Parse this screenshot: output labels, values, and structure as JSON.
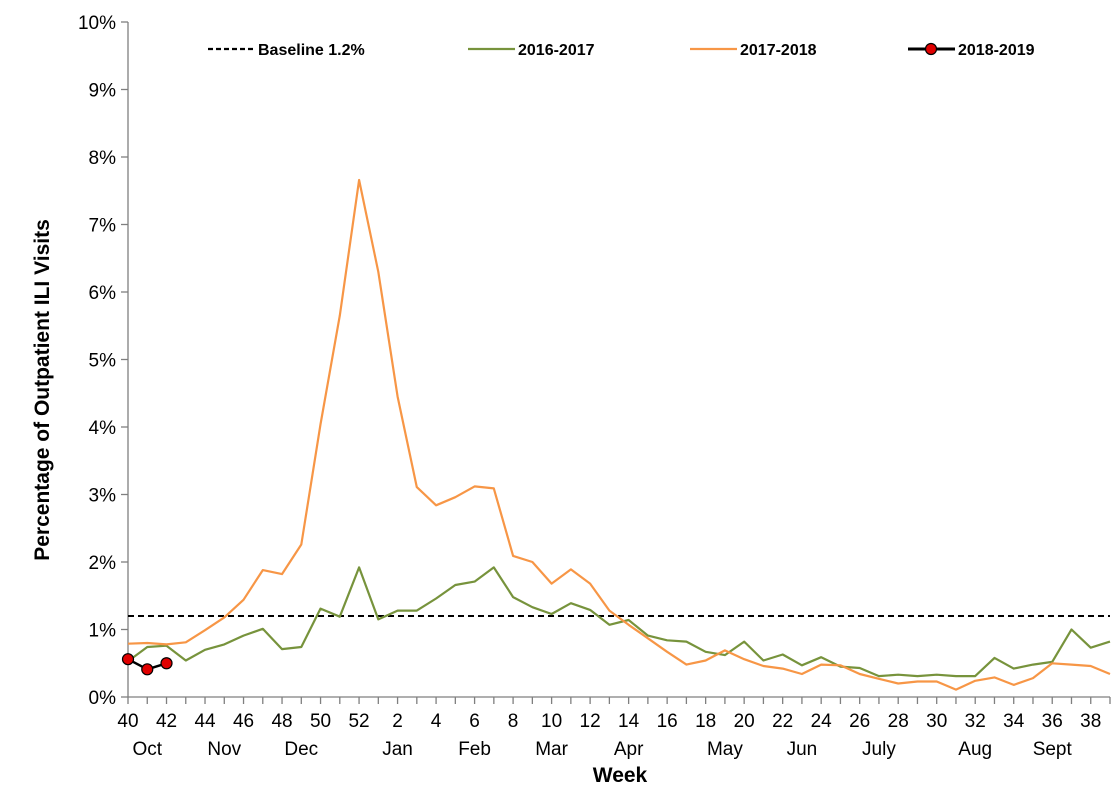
{
  "chart_data": {
    "type": "line",
    "title": "",
    "xlabel": "Week",
    "ylabel": "Percentage of Outpatient ILI Visits",
    "ylim": [
      0,
      10
    ],
    "y_ticks": [
      "0%",
      "1%",
      "2%",
      "3%",
      "4%",
      "5%",
      "6%",
      "7%",
      "8%",
      "9%",
      "10%"
    ],
    "x_weeks": [
      40,
      41,
      42,
      43,
      44,
      45,
      46,
      47,
      48,
      49,
      50,
      51,
      52,
      1,
      2,
      3,
      4,
      5,
      6,
      7,
      8,
      9,
      10,
      11,
      12,
      13,
      14,
      15,
      16,
      17,
      18,
      19,
      20,
      21,
      22,
      23,
      24,
      25,
      26,
      27,
      28,
      29,
      30,
      31,
      32,
      33,
      34,
      35,
      36,
      37,
      38,
      39
    ],
    "x_tick_labels": [
      "40",
      "42",
      "44",
      "46",
      "48",
      "50",
      "52",
      "2",
      "4",
      "6",
      "8",
      "10",
      "12",
      "14",
      "16",
      "18",
      "20",
      "22",
      "24",
      "26",
      "28",
      "30",
      "32",
      "34",
      "36",
      "38"
    ],
    "month_labels": [
      {
        "label": "Oct",
        "week_index": 1
      },
      {
        "label": "Nov",
        "week_index": 5
      },
      {
        "label": "Dec",
        "week_index": 9
      },
      {
        "label": "Jan",
        "week_index": 14
      },
      {
        "label": "Feb",
        "week_index": 18
      },
      {
        "label": "Mar",
        "week_index": 22
      },
      {
        "label": "Apr",
        "week_index": 26
      },
      {
        "label": "May",
        "week_index": 31
      },
      {
        "label": "Jun",
        "week_index": 35
      },
      {
        "label": "July",
        "week_index": 39
      },
      {
        "label": "Aug",
        "week_index": 44
      },
      {
        "label": "Sept",
        "week_index": 48
      }
    ],
    "baseline": {
      "name": "Baseline 1.2%",
      "value": 1.2,
      "color": "#000000",
      "style": "dashed"
    },
    "series": [
      {
        "name": "2016-2017",
        "color": "#77933C",
        "markers": false,
        "values": [
          0.53,
          0.74,
          0.76,
          0.54,
          0.7,
          0.78,
          0.91,
          1.01,
          0.71,
          0.74,
          1.31,
          1.19,
          1.92,
          1.15,
          1.28,
          1.28,
          1.46,
          1.66,
          1.71,
          1.92,
          1.48,
          1.33,
          1.23,
          1.39,
          1.29,
          1.07,
          1.14,
          0.91,
          0.84,
          0.82,
          0.67,
          0.62,
          0.82,
          0.54,
          0.63,
          0.47,
          0.59,
          0.45,
          0.43,
          0.31,
          0.33,
          0.31,
          0.33,
          0.31,
          0.31,
          0.58,
          0.42,
          0.48,
          0.52,
          1.0,
          0.73,
          0.82
        ]
      },
      {
        "name": "2017-2018",
        "color": "#F79646",
        "markers": false,
        "values": [
          0.79,
          0.8,
          0.78,
          0.81,
          0.99,
          1.18,
          1.44,
          1.88,
          1.82,
          2.26,
          4.04,
          5.65,
          7.66,
          6.3,
          4.45,
          3.11,
          2.84,
          2.96,
          3.12,
          3.09,
          2.09,
          2.0,
          1.68,
          1.89,
          1.68,
          1.28,
          1.07,
          0.87,
          0.67,
          0.48,
          0.54,
          0.69,
          0.56,
          0.46,
          0.42,
          0.34,
          0.48,
          0.47,
          0.34,
          0.27,
          0.2,
          0.23,
          0.23,
          0.11,
          0.24,
          0.29,
          0.18,
          0.28,
          0.5,
          0.48,
          0.46,
          0.34
        ]
      },
      {
        "name": "2018-2019",
        "color": "#000000",
        "marker_color": "#E00000",
        "markers": true,
        "values": [
          0.56,
          0.41,
          0.5
        ]
      }
    ],
    "legend_position": "top",
    "grid": false
  }
}
